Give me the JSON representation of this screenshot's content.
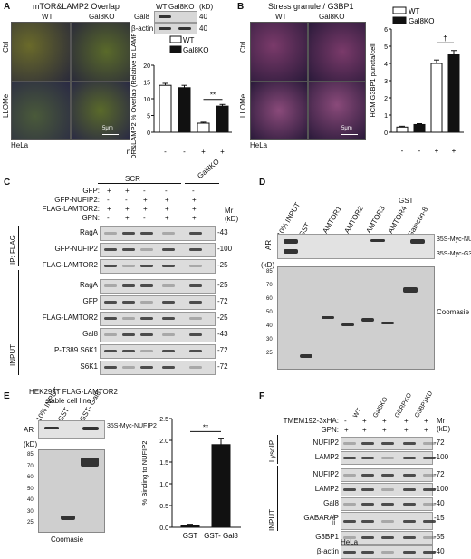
{
  "panels": {
    "A": {
      "letter": "A",
      "title": "mTOR&LAMP2 Overlap",
      "col_wt": "WT",
      "col_ko": "Gal8KO",
      "row_ctrl": "Ctrl",
      "row_llome": "LLOMe",
      "cell_line": "HeLa",
      "scale": "5μm",
      "blot_header_wt": "WT",
      "blot_header_ko": "Gal8KO",
      "blot_unit": "(kD)",
      "blot_rows": [
        "Gal8",
        "β-actin"
      ],
      "blot_mw": [
        "40",
        "40"
      ],
      "treatment_label": "LLOMe 30min:",
      "treatment_signs": [
        "-",
        "-",
        "+",
        "+"
      ]
    },
    "B": {
      "letter": "B",
      "title": "Stress granule / G3BP1",
      "col_wt": "WT",
      "col_ko": "Gal8KO",
      "row_ctrl": "Ctrl",
      "row_llome": "LLOMe",
      "cell_line": "HeLa",
      "scale": "5μm",
      "treatment_label": "LLOMe 30min:",
      "treatment_signs": [
        "-",
        "-",
        "+",
        "+"
      ]
    },
    "C": {
      "letter": "C",
      "top_groups": [
        "SCR",
        "Gal8KO"
      ],
      "conditions": [
        {
          "label": "GFP:",
          "signs": [
            "+",
            "+",
            "-",
            "-",
            "-"
          ]
        },
        {
          "label": "GFP-NUFIP2:",
          "signs": [
            "-",
            "-",
            "+",
            "+",
            "+"
          ]
        },
        {
          "label": "FLAG-LAMTOR2:",
          "signs": [
            "+",
            "+",
            "+",
            "+",
            "+"
          ]
        },
        {
          "label": "GPN:",
          "signs": [
            "-",
            "+",
            "-",
            "+",
            "+"
          ]
        }
      ],
      "mr": "Mr",
      "kd": "(kD)",
      "ip_label": "IP: FLAG",
      "input_label": "INPUT",
      "ip_rows": [
        {
          "name": "RagA",
          "mw": "43"
        },
        {
          "name": "GFP-NUFIP2",
          "mw": "100"
        },
        {
          "name": "FLAG-LAMTOR2",
          "mw": "25"
        }
      ],
      "input_rows": [
        {
          "name": "RagA",
          "mw": "25"
        },
        {
          "name": "GFP",
          "mw": "72"
        },
        {
          "name": "FLAG-LAMTOR2",
          "mw": "25"
        },
        {
          "name": "Gal8",
          "mw": "43"
        },
        {
          "name": "P-T389 S6K1",
          "mw": "72"
        },
        {
          "name": "S6K1",
          "mw": "72"
        }
      ],
      "footer": [
        "HEK293T FLAG-LAMTOR2",
        "stable cell line"
      ]
    },
    "D": {
      "letter": "D",
      "gst_header": "GST",
      "lanes": [
        "10% INPUT",
        "GST",
        "LAMTOR1",
        "LAMTOR2",
        "LAMTOR3",
        "LAMTOR4",
        "Galectin-8"
      ],
      "ar": "AR",
      "kd": "(kD)",
      "right_labels": [
        "35S-Myc-NUFIP2",
        "35S-Myc-G3BP1"
      ],
      "mw_ladder": [
        "85",
        "70",
        "60",
        "50",
        "40",
        "30",
        "25"
      ],
      "coomassie": "Coomasie"
    },
    "E": {
      "letter": "E",
      "lanes": [
        "10% INPUT",
        "GST",
        "GST- Gal8"
      ],
      "ar": "AR",
      "kd": "(kD)",
      "right_label": "35S-Myc-NUFIP2",
      "mw_ladder": [
        "85",
        "70",
        "60",
        "50",
        "40",
        "30",
        "25"
      ],
      "coomassie": "Coomasie"
    },
    "F": {
      "letter": "F",
      "lanes": [
        "WT",
        "Gal8KO",
        "GBRPKO",
        "G3BP1KD"
      ],
      "conditions": [
        {
          "label": "TMEM192-3xHA:",
          "signs": [
            "-",
            "+",
            "+",
            "+",
            "+"
          ]
        },
        {
          "label": "GPN:",
          "signs": [
            "+",
            "+",
            "+",
            "+",
            "+"
          ]
        }
      ],
      "mr": "Mr",
      "kd": "(kD)",
      "lysoip_label": "LysoIP",
      "input_label": "INPUT",
      "lysoip_rows": [
        {
          "name": "NUFIP2",
          "mw": "72"
        },
        {
          "name": "LAMP2",
          "mw": "100"
        }
      ],
      "input_rows": [
        {
          "name": "NUFIP2",
          "mw": "72"
        },
        {
          "name": "LAMP2",
          "mw": "100"
        },
        {
          "name": "Gal8",
          "mw": "40"
        },
        {
          "name": "GABARAP",
          "mw": "15"
        },
        {
          "name": "G3BP1",
          "mw": "55"
        },
        {
          "name": "β-actin",
          "mw": "40"
        }
      ],
      "gabarap_marks": [
        "I",
        "II"
      ],
      "cell_line": "HeLa"
    }
  },
  "chart_data": [
    {
      "type": "bar",
      "panel": "A",
      "ylabel": "HCM mTOR&LAMP2 % Overlap (Relative to LAMP2 area)",
      "categories": [
        "1",
        "2",
        "3",
        "4"
      ],
      "treatment": [
        "-",
        "-",
        "+",
        "+"
      ],
      "series": [
        {
          "name": "WT",
          "values": [
            14,
            null,
            2.7,
            null
          ],
          "errors": [
            0.6,
            null,
            0.3,
            null
          ]
        },
        {
          "name": "Gal8KO",
          "values": [
            null,
            13.3,
            null,
            7.8
          ],
          "errors": [
            null,
            0.7,
            null,
            0.5
          ]
        }
      ],
      "ylim": [
        0,
        20
      ],
      "yticks": [
        0,
        5,
        10,
        15,
        20
      ],
      "significance": {
        "between": [
          3,
          4
        ],
        "label": "**"
      },
      "legend": "top-right"
    },
    {
      "type": "bar",
      "panel": "B",
      "ylabel": "HCM G3BP1 puncta/cell",
      "categories": [
        "1",
        "2",
        "3",
        "4"
      ],
      "treatment": [
        "-",
        "-",
        "+",
        "+"
      ],
      "series": [
        {
          "name": "WT",
          "values": [
            0.3,
            null,
            4.0,
            null
          ],
          "errors": [
            0.05,
            null,
            0.2,
            null
          ]
        },
        {
          "name": "Gal8KO",
          "values": [
            null,
            0.45,
            null,
            4.5
          ],
          "errors": [
            null,
            0.05,
            null,
            0.25
          ]
        }
      ],
      "ylim": [
        0,
        6
      ],
      "yticks": [
        0,
        1,
        2,
        3,
        4,
        5,
        6
      ],
      "significance": {
        "between": [
          3,
          4
        ],
        "label": "†"
      },
      "legend": "top-left"
    },
    {
      "type": "bar",
      "panel": "E",
      "ylabel": "% Binding to NUFIP2",
      "categories": [
        "GST",
        "GST- Gal8"
      ],
      "values": [
        0.05,
        1.9
      ],
      "errors": [
        0.02,
        0.15
      ],
      "ylim": [
        0,
        2.5
      ],
      "yticks": [
        0.0,
        0.5,
        1.0,
        1.5,
        2.0,
        2.5
      ],
      "significance": {
        "between": [
          1,
          2
        ],
        "label": "**"
      }
    }
  ]
}
